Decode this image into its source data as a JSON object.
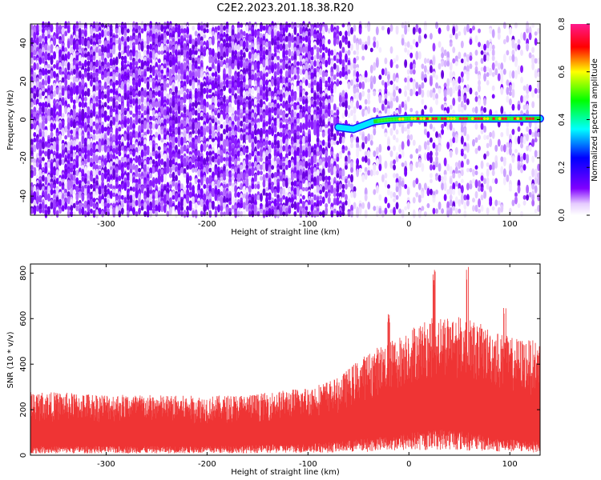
{
  "title": "C2E2.2023.201.18.38.R20",
  "chart_data": [
    {
      "type": "heatmap",
      "xlabel": "Height of straight line (km)",
      "ylabel": "Frequency (Hz)",
      "xlim": [
        -375,
        130
      ],
      "ylim": [
        -50,
        50
      ],
      "xticks": [
        -300,
        -200,
        -100,
        0,
        100
      ],
      "yticks": [
        -40,
        -20,
        0,
        20,
        40
      ],
      "colorbar": {
        "label": "Normalized spectral amplitude",
        "range": [
          0.0,
          0.8
        ],
        "ticks": [
          "0.0",
          "0.2",
          "0.4",
          "0.6",
          "0.8"
        ],
        "colormap": "rainbow (violet-blue-cyan-green-yellow-red)"
      },
      "signal_track": [
        {
          "x": -70,
          "y": -4
        },
        {
          "x": -55,
          "y": -5
        },
        {
          "x": -45,
          "y": -3
        },
        {
          "x": -35,
          "y": -1
        },
        {
          "x": -20,
          "y": 0
        },
        {
          "x": 0,
          "y": 0.5
        },
        {
          "x": 50,
          "y": 0.5
        },
        {
          "x": 130,
          "y": 0.5
        }
      ],
      "grid": false
    },
    {
      "type": "area",
      "xlabel": "Height of straight line (km)",
      "ylabel": "SNR (10 * v/v)",
      "xlim": [
        -375,
        130
      ],
      "ylim": [
        0,
        840
      ],
      "xticks": [
        -300,
        -200,
        -100,
        0,
        100
      ],
      "yticks": [
        0,
        200,
        400,
        600,
        800
      ],
      "color": "#ef3434",
      "envelope": {
        "x": [
          -375,
          -300,
          -200,
          -150,
          -100,
          -70,
          -50,
          -30,
          -10,
          0,
          20,
          40,
          60,
          80,
          100,
          130
        ],
        "upper": [
          280,
          270,
          260,
          270,
          300,
          340,
          420,
          480,
          520,
          560,
          600,
          620,
          600,
          560,
          520,
          500
        ],
        "lower": [
          40,
          40,
          40,
          45,
          50,
          60,
          70,
          80,
          90,
          100,
          110,
          120,
          100,
          80,
          70,
          60
        ],
        "peaks": [
          {
            "x": -20,
            "y": 620
          },
          {
            "x": 25,
            "y": 830
          },
          {
            "x": 58,
            "y": 840
          },
          {
            "x": 95,
            "y": 680
          }
        ]
      },
      "grid": false
    }
  ]
}
